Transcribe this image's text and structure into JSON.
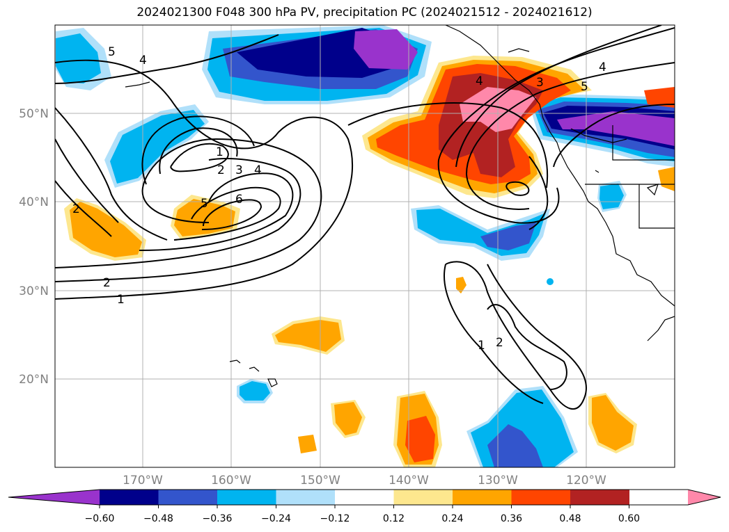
{
  "title": "2024021300 F048 300 hPa PV, precipitation PC (2024021512 - 2024021612)",
  "map": {
    "lon_labels": [
      "170°W",
      "160°W",
      "150°W",
      "140°W",
      "130°W",
      "120°W"
    ],
    "lat_labels": [
      "50°N",
      "40°N",
      "30°N",
      "20°N"
    ],
    "contour_labels": [
      "5",
      "4",
      "1",
      "2",
      "3",
      "4",
      "5",
      "6",
      "2",
      "2",
      "1",
      "4",
      "3",
      "5",
      "4",
      "1",
      "2"
    ]
  },
  "colorbar": {
    "labels": [
      "−0.60",
      "−0.48",
      "−0.36",
      "−0.24",
      "−0.12",
      "0.12",
      "0.24",
      "0.36",
      "0.48",
      "0.60"
    ],
    "colors": [
      "#9933cc",
      "#00008b",
      "#3355cc",
      "#00b4f0",
      "#b0e0fa",
      "#ffffff",
      "#fde78e",
      "#ffa500",
      "#ff4500",
      "#b22222",
      "#ff88aa"
    ]
  },
  "colors": {
    "gridline": "#b0b0b0",
    "contour": "#000000",
    "coast": "#000000"
  }
}
